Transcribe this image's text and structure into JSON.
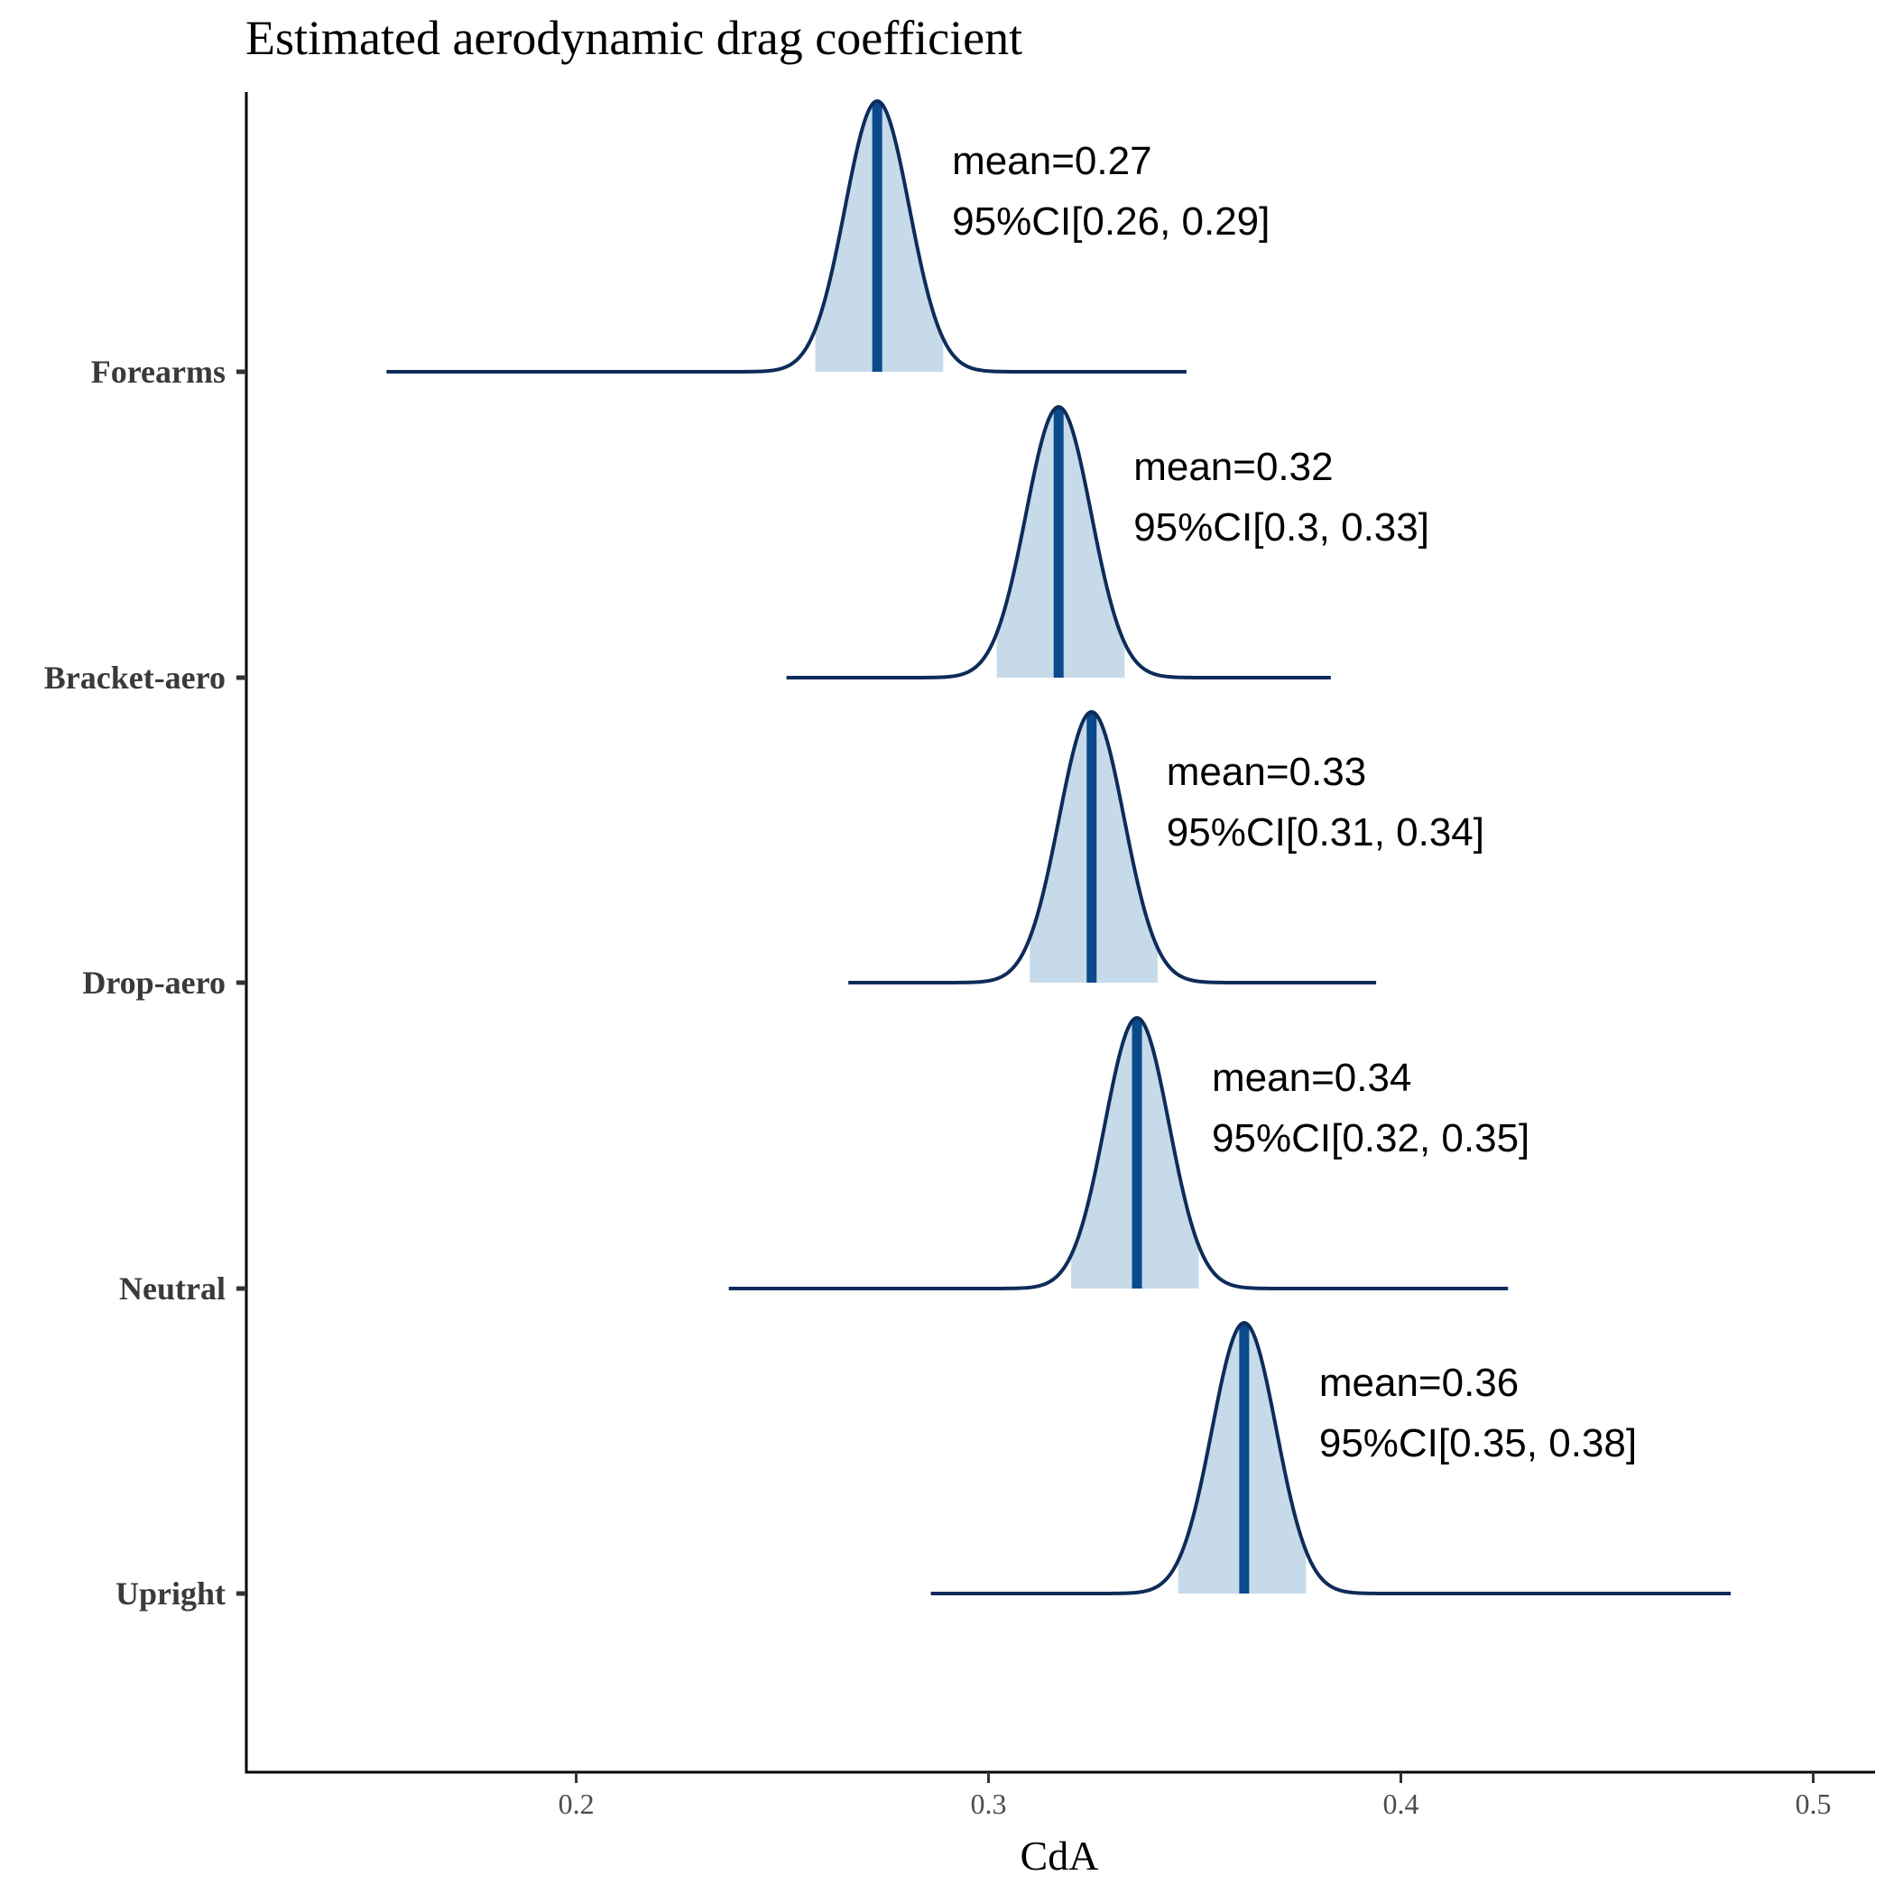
{
  "chart_data": {
    "type": "density",
    "title": "Estimated aerodynamic drag coefficient",
    "xlabel": "CdA",
    "ylabel": "",
    "xlim": [
      0.12,
      0.515
    ],
    "x_ticks": [
      0.2,
      0.3,
      0.4,
      0.5
    ],
    "x_tick_labels": [
      "0.2",
      "0.3",
      "0.4",
      "0.5"
    ],
    "grid": false,
    "colors": {
      "fill": "#c6dae9",
      "outline": "#0e2c5a",
      "median_line": "#0b4a8c",
      "axis": "#000000"
    },
    "series": [
      {
        "name": "Forearms",
        "mean": 0.273,
        "ci_low": 0.258,
        "ci_high": 0.289,
        "sd": 0.0078,
        "min": 0.154,
        "max": 0.348,
        "mean_label": "mean=0.27",
        "ci_label": "95%CI[0.26, 0.29]"
      },
      {
        "name": "Bracket-aero",
        "mean": 0.317,
        "ci_low": 0.302,
        "ci_high": 0.333,
        "sd": 0.0079,
        "min": 0.251,
        "max": 0.383,
        "mean_label": "mean=0.32",
        "ci_label": "95%CI[0.3, 0.33]"
      },
      {
        "name": "Drop-aero",
        "mean": 0.325,
        "ci_low": 0.31,
        "ci_high": 0.341,
        "sd": 0.0079,
        "min": 0.266,
        "max": 0.394,
        "mean_label": "mean=0.33",
        "ci_label": "95%CI[0.31, 0.34]"
      },
      {
        "name": "Neutral",
        "mean": 0.336,
        "ci_low": 0.32,
        "ci_high": 0.351,
        "sd": 0.0078,
        "min": 0.237,
        "max": 0.426,
        "mean_label": "mean=0.34",
        "ci_label": "95%CI[0.32, 0.35]"
      },
      {
        "name": "Upright",
        "mean": 0.362,
        "ci_low": 0.346,
        "ci_high": 0.377,
        "sd": 0.0078,
        "min": 0.286,
        "max": 0.48,
        "mean_label": "mean=0.36",
        "ci_label": "95%CI[0.35, 0.38]"
      }
    ]
  }
}
